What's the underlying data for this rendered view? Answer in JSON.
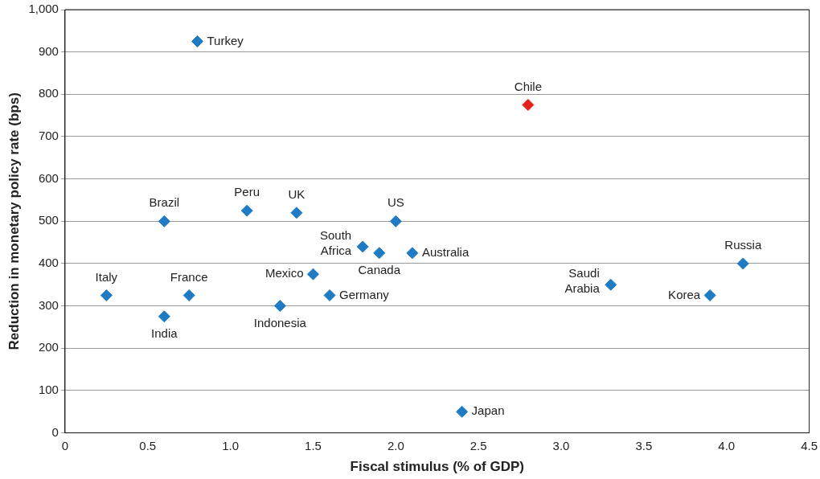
{
  "chart_data": {
    "type": "scatter",
    "xlabel": "Fiscal stimulus (% of GDP)",
    "ylabel": "Reduction in monetary policy rate (bps)",
    "x": [
      0.8,
      2.8,
      0.6,
      1.1,
      1.4,
      2.0,
      1.8,
      1.9,
      2.1,
      4.1,
      1.5,
      3.3,
      0.25,
      0.75,
      1.6,
      3.9,
      0.6,
      1.3,
      2.4
    ],
    "series": [
      {
        "values": [
          925,
          775,
          500,
          525,
          520,
          500,
          440,
          425,
          425,
          400,
          375,
          350,
          325,
          325,
          325,
          325,
          275,
          300,
          50
        ],
        "colors": [
          "#1f7bc4",
          "#e3201b",
          "#1f7bc4",
          "#1f7bc4",
          "#1f7bc4",
          "#1f7bc4",
          "#1f7bc4",
          "#1f7bc4",
          "#1f7bc4",
          "#1f7bc4",
          "#1f7bc4",
          "#1f7bc4",
          "#1f7bc4",
          "#1f7bc4",
          "#1f7bc4",
          "#1f7bc4",
          "#1f7bc4",
          "#1f7bc4",
          "#1f7bc4"
        ]
      }
    ],
    "annotations": [
      {
        "text": "Turkey",
        "x": 0.8,
        "y": 925
      },
      {
        "text": "Chile",
        "x": 2.8,
        "y": 775
      },
      {
        "text": "Brazil",
        "x": 0.6,
        "y": 500
      },
      {
        "text": "Peru",
        "x": 1.1,
        "y": 525
      },
      {
        "text": "UK",
        "x": 1.4,
        "y": 520
      },
      {
        "text": "US",
        "x": 2.0,
        "y": 500
      },
      {
        "text": "South Africa",
        "x": 1.8,
        "y": 440
      },
      {
        "text": "Canada",
        "x": 1.9,
        "y": 425
      },
      {
        "text": "Australia",
        "x": 2.1,
        "y": 425
      },
      {
        "text": "Russia",
        "x": 4.1,
        "y": 400
      },
      {
        "text": "Mexico",
        "x": 1.5,
        "y": 375
      },
      {
        "text": "Saudi Arabia",
        "x": 3.3,
        "y": 350
      },
      {
        "text": "Italy",
        "x": 0.25,
        "y": 325
      },
      {
        "text": "France",
        "x": 0.75,
        "y": 325
      },
      {
        "text": "Germany",
        "x": 1.6,
        "y": 325
      },
      {
        "text": "Korea",
        "x": 3.9,
        "y": 325
      },
      {
        "text": "India",
        "x": 0.6,
        "y": 275
      },
      {
        "text": "Indonesia",
        "x": 1.3,
        "y": 300
      },
      {
        "text": "Japan",
        "x": 2.4,
        "y": 50
      }
    ],
    "xlim": [
      0,
      4.5
    ],
    "xticks": [
      0,
      0.5,
      {
        "value": 1,
        "label": "1.0"
      },
      1.5,
      {
        "value": 2,
        "label": "2.0"
      },
      2.5,
      {
        "value": 3,
        "label": "3.0"
      },
      3.5,
      {
        "value": 4,
        "label": "4.0"
      },
      4.5
    ],
    "ylim": [
      0,
      1000
    ],
    "yticks": [
      0,
      100,
      200,
      300,
      400,
      500,
      600,
      700,
      800,
      900,
      {
        "value": 1000,
        "label": "1,000"
      }
    ],
    "grid": "y",
    "marker": "diamond"
  }
}
